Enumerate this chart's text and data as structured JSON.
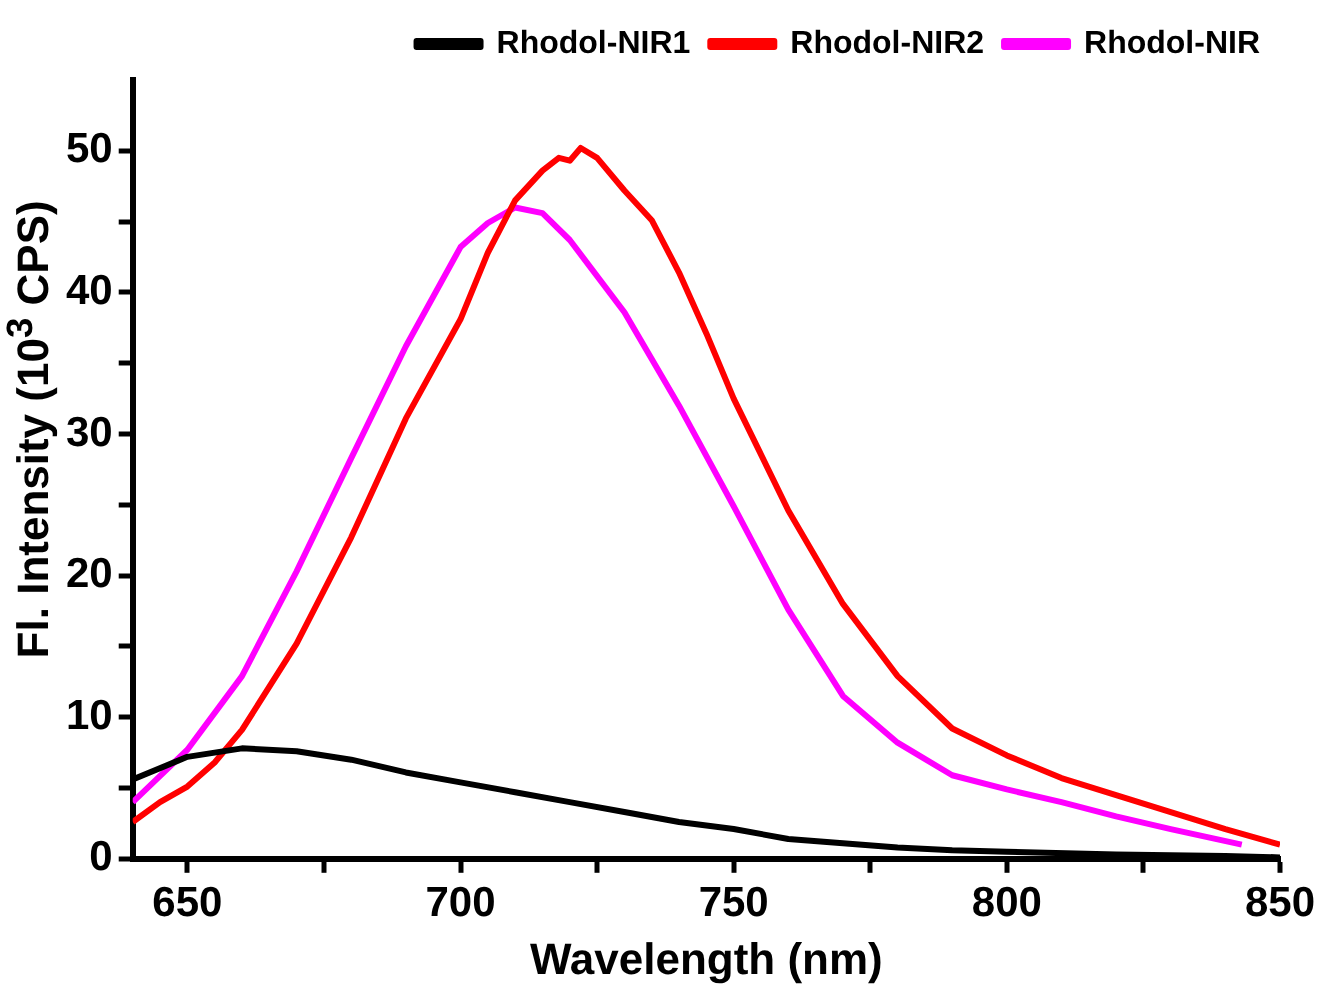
{
  "chart_data": {
    "type": "line",
    "xlabel": "Wavelength (nm)",
    "ylabel": "Fl. Intensity (10$^{3}$ CPS)",
    "xlim": [
      640,
      850
    ],
    "xticks": [
      650,
      {
        "value": 675,
        "label": null
      },
      700,
      {
        "value": 725,
        "label": null
      },
      750,
      {
        "value": 775,
        "label": null
      },
      800,
      {
        "value": 825,
        "label": null
      },
      850
    ],
    "ylim": [
      0,
      55
    ],
    "yticks": [
      0,
      {
        "value": 5,
        "label": null
      },
      10,
      {
        "value": 15,
        "label": null
      },
      20,
      {
        "value": 25,
        "label": null
      },
      30,
      {
        "value": 35,
        "label": null
      },
      40,
      {
        "value": 45,
        "label": null
      },
      50
    ],
    "grid": false,
    "legend": "top right",
    "marker": "none",
    "line_style": "solid",
    "series": [
      {
        "name": "Rhodol-NIR1",
        "color": "#000000",
        "x": [
          640,
          650,
          660,
          670,
          680,
          690,
          700,
          710,
          720,
          730,
          740,
          750,
          760,
          770,
          780,
          790,
          800,
          820,
          840,
          850
        ],
        "values": [
          5.6,
          7.2,
          7.8,
          7.6,
          7.0,
          6.1,
          5.4,
          4.7,
          4.0,
          3.3,
          2.6,
          2.1,
          1.4,
          1.1,
          0.8,
          0.6,
          0.5,
          0.3,
          0.2,
          0.1
        ]
      },
      {
        "name": "Rhodol-NIR2",
        "color": "#ff0000",
        "x": [
          640,
          645,
          650,
          655,
          660,
          670,
          680,
          690,
          700,
          705,
          710,
          715,
          718,
          720,
          722,
          725,
          730,
          735,
          740,
          745,
          750,
          760,
          770,
          780,
          790,
          800,
          810,
          820,
          830,
          840,
          850
        ],
        "values": [
          2.6,
          4.0,
          5.1,
          6.8,
          9.1,
          15.2,
          22.7,
          31.1,
          38.1,
          42.8,
          46.5,
          48.6,
          49.5,
          49.3,
          50.2,
          49.5,
          47.2,
          45.1,
          41.4,
          37.1,
          32.5,
          24.6,
          18.0,
          12.9,
          9.2,
          7.3,
          5.7,
          4.5,
          3.3,
          2.1,
          1.0
        ]
      },
      {
        "name": "Rhodol-NIR",
        "color": "#ff00ff",
        "x": [
          640,
          650,
          660,
          670,
          680,
          690,
          700,
          705,
          710,
          715,
          720,
          730,
          740,
          750,
          760,
          770,
          780,
          790,
          800,
          810,
          820,
          830,
          843
        ],
        "values": [
          4.0,
          7.7,
          12.9,
          20.3,
          28.3,
          36.2,
          43.2,
          44.9,
          46.0,
          45.6,
          43.7,
          38.6,
          32.0,
          24.9,
          17.6,
          11.5,
          8.2,
          5.9,
          4.9,
          4.0,
          3.0,
          2.1,
          1.0
        ]
      }
    ]
  }
}
